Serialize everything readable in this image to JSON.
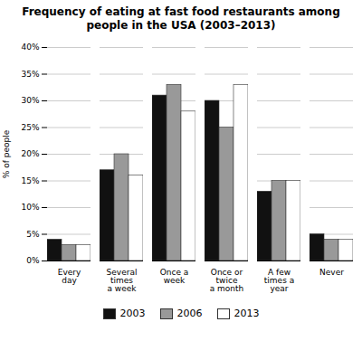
{
  "chart_data": {
    "type": "bar",
    "title": "Frequency of eating at fast food restaurants among\npeople in the USA (2003–2013)",
    "categories": [
      "Every\nday",
      "Several\ntimes\na week",
      "Once a\nweek",
      "Once or\ntwice\na month",
      "A few\ntimes a\nyear",
      "Never"
    ],
    "series": [
      {
        "name": "2003",
        "color": "#111111",
        "values": [
          4,
          17,
          31,
          30,
          13,
          5
        ]
      },
      {
        "name": "2006",
        "color": "#999999",
        "values": [
          3,
          20,
          33,
          25,
          15,
          4
        ]
      },
      {
        "name": "2013",
        "color": "#ffffff",
        "values": [
          3,
          16,
          28,
          33,
          15,
          4
        ]
      }
    ],
    "ylabel": "% of people",
    "ylim": [
      0,
      40
    ],
    "yticks": [
      {
        "value": 0,
        "label": "0%"
      },
      {
        "value": 5,
        "label": "5%"
      },
      {
        "value": 10,
        "label": "10%"
      },
      {
        "value": 15,
        "label": "15%"
      },
      {
        "value": 20,
        "label": "20%"
      },
      {
        "value": 25,
        "label": "25%"
      },
      {
        "value": 30,
        "label": "30%"
      },
      {
        "value": 35,
        "label": "35%"
      },
      {
        "value": 40,
        "label": "40%"
      }
    ],
    "grid": true,
    "legend": "bottom"
  }
}
